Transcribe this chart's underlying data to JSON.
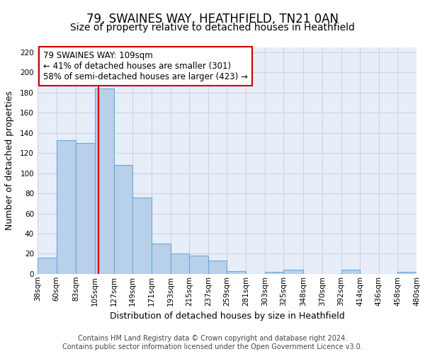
{
  "title": "79, SWAINES WAY, HEATHFIELD, TN21 0AN",
  "subtitle": "Size of property relative to detached houses in Heathfield",
  "xlabel": "Distribution of detached houses by size in Heathfield",
  "ylabel": "Number of detached properties",
  "bar_values": [
    16,
    133,
    130,
    184,
    108,
    76,
    30,
    20,
    18,
    13,
    3,
    0,
    2,
    4,
    0,
    0,
    4,
    0,
    0,
    2
  ],
  "bin_edges": [
    38,
    60,
    83,
    105,
    127,
    149,
    171,
    193,
    215,
    237,
    259,
    281,
    303,
    325,
    348,
    370,
    392,
    414,
    436,
    458,
    480
  ],
  "tick_labels": [
    "38sqm",
    "60sqm",
    "83sqm",
    "105sqm",
    "127sqm",
    "149sqm",
    "171sqm",
    "193sqm",
    "215sqm",
    "237sqm",
    "259sqm",
    "281sqm",
    "303sqm",
    "325sqm",
    "348sqm",
    "370sqm",
    "392sqm",
    "414sqm",
    "436sqm",
    "458sqm",
    "480sqm"
  ],
  "bar_color": "#b8d0ea",
  "bar_edge_color": "#6fa8d8",
  "grid_color": "#c8d4e8",
  "background_color": "#e8eef8",
  "property_line_x": 109,
  "property_line_color": "#cc0000",
  "annotation_text": "79 SWAINES WAY: 109sqm\n← 41% of detached houses are smaller (301)\n58% of semi-detached houses are larger (423) →",
  "annotation_box_color": "#cc0000",
  "ylim": [
    0,
    225
  ],
  "yticks": [
    0,
    20,
    40,
    60,
    80,
    100,
    120,
    140,
    160,
    180,
    200,
    220
  ],
  "footer_line1": "Contains HM Land Registry data © Crown copyright and database right 2024.",
  "footer_line2": "Contains public sector information licensed under the Open Government Licence v3.0.",
  "title_fontsize": 12,
  "subtitle_fontsize": 10,
  "axis_label_fontsize": 9,
  "tick_fontsize": 7.5,
  "annotation_fontsize": 8.5,
  "footer_fontsize": 7
}
